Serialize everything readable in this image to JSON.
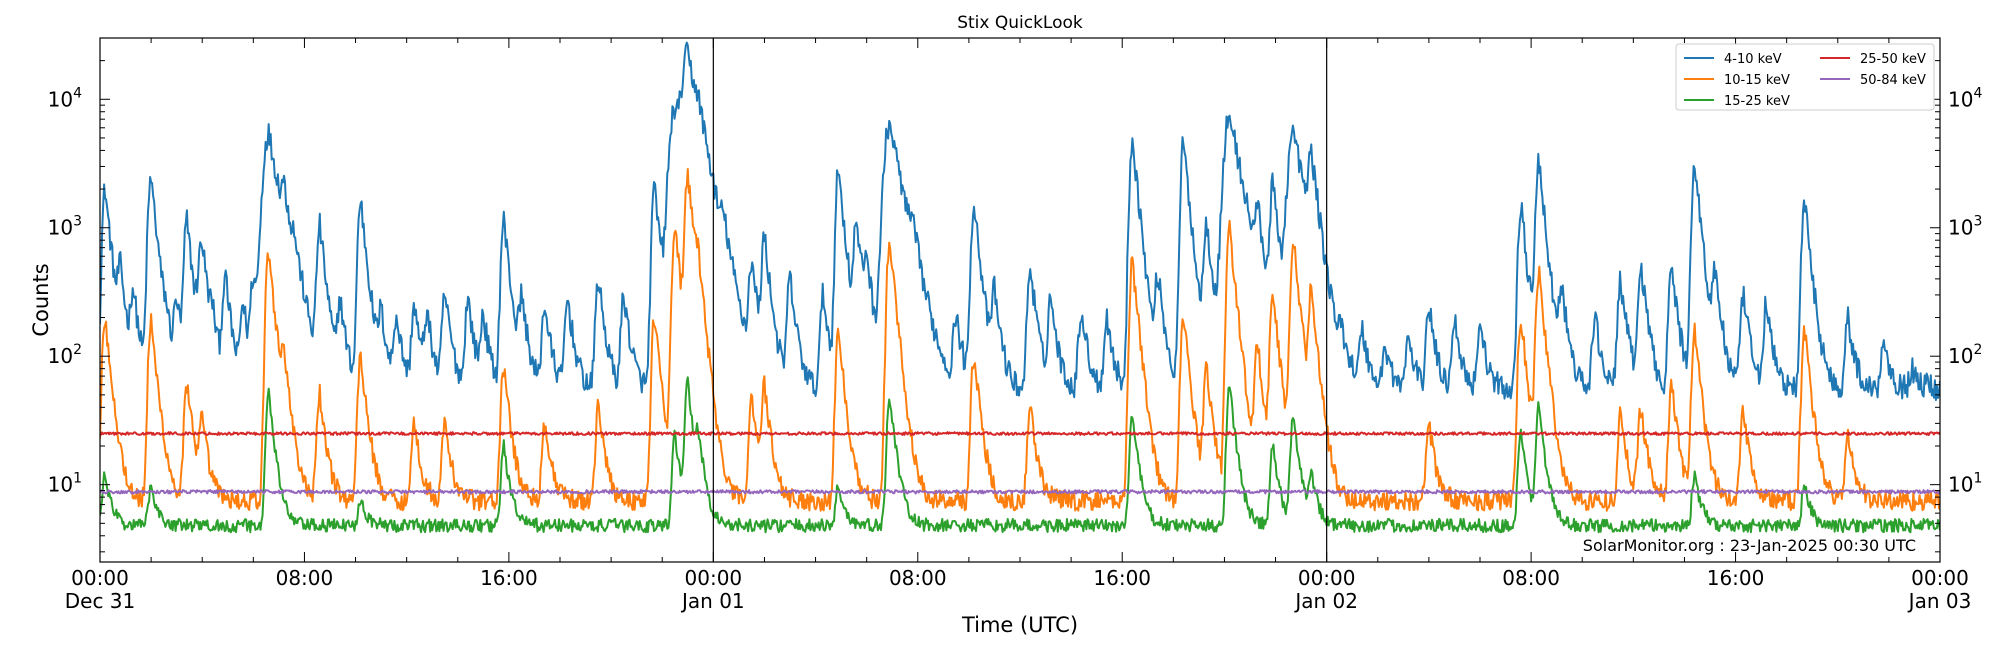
{
  "chart_data": {
    "type": "line",
    "title": "Stix QuickLook",
    "xlabel": "Time (UTC)",
    "ylabel": "Counts",
    "yscale": "log",
    "x_unit": "hours since 2024-12-31 00:00 UTC",
    "xlim": [
      0,
      72
    ],
    "ylim": [
      2.5,
      30000
    ],
    "x_ticks": [
      {
        "x": 0,
        "label": "00:00",
        "sublabel": "Dec 31"
      },
      {
        "x": 8,
        "label": "08:00",
        "sublabel": ""
      },
      {
        "x": 16,
        "label": "16:00",
        "sublabel": ""
      },
      {
        "x": 24,
        "label": "00:00",
        "sublabel": "Jan 01"
      },
      {
        "x": 32,
        "label": "08:00",
        "sublabel": ""
      },
      {
        "x": 40,
        "label": "16:00",
        "sublabel": ""
      },
      {
        "x": 48,
        "label": "00:00",
        "sublabel": "Jan 02"
      },
      {
        "x": 56,
        "label": "08:00",
        "sublabel": ""
      },
      {
        "x": 64,
        "label": "16:00",
        "sublabel": ""
      },
      {
        "x": 72,
        "label": "00:00",
        "sublabel": "Jan 03"
      }
    ],
    "y_ticks": [
      {
        "value": 10,
        "base": "10",
        "exp": "1"
      },
      {
        "value": 100,
        "base": "10",
        "exp": "2"
      },
      {
        "value": 1000,
        "base": "10",
        "exp": "3"
      },
      {
        "value": 10000,
        "base": "10",
        "exp": "4"
      }
    ],
    "day_boundaries": [
      24,
      48
    ],
    "legend_position": "top-right",
    "annotation": "SolarMonitor.org : 23-Jan-2025 00:30 UTC",
    "series": [
      {
        "name": "4-10 keV",
        "color": "#1f77b4",
        "baseline": 55,
        "noise": 0.22,
        "peaks": [
          {
            "t": 0.2,
            "v": 2000
          },
          {
            "t": 0.8,
            "v": 400
          },
          {
            "t": 1.3,
            "v": 300
          },
          {
            "t": 1.9,
            "v": 250
          },
          {
            "t": 2.0,
            "v": 2300
          },
          {
            "t": 2.6,
            "v": 120
          },
          {
            "t": 3.0,
            "v": 250
          },
          {
            "t": 3.4,
            "v": 1100
          },
          {
            "t": 3.9,
            "v": 250
          },
          {
            "t": 4.0,
            "v": 600
          },
          {
            "t": 4.4,
            "v": 150
          },
          {
            "t": 4.9,
            "v": 400
          },
          {
            "t": 5.6,
            "v": 250
          },
          {
            "t": 6.0,
            "v": 380
          },
          {
            "t": 6.5,
            "v": 400
          },
          {
            "t": 6.6,
            "v": 5200
          },
          {
            "t": 7.2,
            "v": 1100
          },
          {
            "t": 7.6,
            "v": 300
          },
          {
            "t": 8.6,
            "v": 1000
          },
          {
            "t": 9.4,
            "v": 250
          },
          {
            "t": 10.2,
            "v": 1650
          },
          {
            "t": 11.0,
            "v": 200
          },
          {
            "t": 11.6,
            "v": 200
          },
          {
            "t": 12.3,
            "v": 250
          },
          {
            "t": 12.8,
            "v": 200
          },
          {
            "t": 13.5,
            "v": 300
          },
          {
            "t": 14.4,
            "v": 280
          },
          {
            "t": 15.0,
            "v": 200
          },
          {
            "t": 15.8,
            "v": 1150
          },
          {
            "t": 16.5,
            "v": 260
          },
          {
            "t": 17.4,
            "v": 250
          },
          {
            "t": 18.3,
            "v": 280
          },
          {
            "t": 19.5,
            "v": 400
          },
          {
            "t": 20.5,
            "v": 300
          },
          {
            "t": 21.7,
            "v": 2000
          },
          {
            "t": 22.5,
            "v": 8500
          },
          {
            "t": 23.0,
            "v": 20000
          },
          {
            "t": 23.4,
            "v": 2500
          },
          {
            "t": 24.4,
            "v": 500
          },
          {
            "t": 25.5,
            "v": 500
          },
          {
            "t": 26.0,
            "v": 800
          },
          {
            "t": 27.0,
            "v": 400
          },
          {
            "t": 28.3,
            "v": 300
          },
          {
            "t": 28.9,
            "v": 2800
          },
          {
            "t": 29.6,
            "v": 1000
          },
          {
            "t": 30.0,
            "v": 500
          },
          {
            "t": 30.9,
            "v": 6500
          },
          {
            "t": 31.8,
            "v": 400
          },
          {
            "t": 33.5,
            "v": 200
          },
          {
            "t": 34.2,
            "v": 1600
          },
          {
            "t": 35.0,
            "v": 300
          },
          {
            "t": 36.4,
            "v": 500
          },
          {
            "t": 37.2,
            "v": 280
          },
          {
            "t": 38.4,
            "v": 230
          },
          {
            "t": 39.4,
            "v": 200
          },
          {
            "t": 40.4,
            "v": 5000
          },
          {
            "t": 41.4,
            "v": 400
          },
          {
            "t": 42.4,
            "v": 4500
          },
          {
            "t": 43.3,
            "v": 1100
          },
          {
            "t": 44.2,
            "v": 7500
          },
          {
            "t": 45.3,
            "v": 1000
          },
          {
            "t": 45.9,
            "v": 2000
          },
          {
            "t": 46.7,
            "v": 5500
          },
          {
            "t": 47.4,
            "v": 3000
          },
          {
            "t": 48.6,
            "v": 100
          },
          {
            "t": 49.4,
            "v": 150
          },
          {
            "t": 50.3,
            "v": 120
          },
          {
            "t": 51.2,
            "v": 140
          },
          {
            "t": 52.0,
            "v": 250
          },
          {
            "t": 53.0,
            "v": 200
          },
          {
            "t": 54.0,
            "v": 180
          },
          {
            "t": 55.6,
            "v": 1500
          },
          {
            "t": 56.3,
            "v": 3200
          },
          {
            "t": 57.2,
            "v": 300
          },
          {
            "t": 58.5,
            "v": 200
          },
          {
            "t": 59.5,
            "v": 400
          },
          {
            "t": 60.3,
            "v": 500
          },
          {
            "t": 61.5,
            "v": 500
          },
          {
            "t": 62.4,
            "v": 3200
          },
          {
            "t": 63.2,
            "v": 400
          },
          {
            "t": 64.3,
            "v": 300
          },
          {
            "t": 65.2,
            "v": 250
          },
          {
            "t": 66.7,
            "v": 1600
          },
          {
            "t": 68.4,
            "v": 200
          },
          {
            "t": 69.8,
            "v": 140
          },
          {
            "t": 70.9,
            "v": 80
          },
          {
            "t": 71.5,
            "v": 60
          }
        ]
      },
      {
        "name": "10-15 keV",
        "color": "#ff7f0e",
        "baseline": 7.5,
        "noise": 0.18,
        "peaks": [
          {
            "t": 0.2,
            "v": 200
          },
          {
            "t": 2.0,
            "v": 180
          },
          {
            "t": 3.4,
            "v": 60
          },
          {
            "t": 4.0,
            "v": 30
          },
          {
            "t": 6.6,
            "v": 650
          },
          {
            "t": 7.2,
            "v": 80
          },
          {
            "t": 8.6,
            "v": 50
          },
          {
            "t": 10.2,
            "v": 100
          },
          {
            "t": 12.3,
            "v": 30
          },
          {
            "t": 13.5,
            "v": 30
          },
          {
            "t": 15.8,
            "v": 80
          },
          {
            "t": 17.4,
            "v": 30
          },
          {
            "t": 19.5,
            "v": 40
          },
          {
            "t": 21.7,
            "v": 200
          },
          {
            "t": 22.5,
            "v": 1000
          },
          {
            "t": 23.0,
            "v": 2500
          },
          {
            "t": 23.4,
            "v": 300
          },
          {
            "t": 25.5,
            "v": 50
          },
          {
            "t": 26.0,
            "v": 55
          },
          {
            "t": 28.9,
            "v": 150
          },
          {
            "t": 30.9,
            "v": 800
          },
          {
            "t": 34.2,
            "v": 100
          },
          {
            "t": 36.4,
            "v": 40
          },
          {
            "t": 40.4,
            "v": 550
          },
          {
            "t": 42.4,
            "v": 200
          },
          {
            "t": 43.3,
            "v": 80
          },
          {
            "t": 44.2,
            "v": 1000
          },
          {
            "t": 45.3,
            "v": 120
          },
          {
            "t": 45.9,
            "v": 300
          },
          {
            "t": 46.7,
            "v": 800
          },
          {
            "t": 47.4,
            "v": 300
          },
          {
            "t": 52.0,
            "v": 30
          },
          {
            "t": 55.6,
            "v": 200
          },
          {
            "t": 56.3,
            "v": 450
          },
          {
            "t": 59.5,
            "v": 35
          },
          {
            "t": 60.3,
            "v": 40
          },
          {
            "t": 61.5,
            "v": 60
          },
          {
            "t": 62.4,
            "v": 150
          },
          {
            "t": 64.3,
            "v": 40
          },
          {
            "t": 66.7,
            "v": 160
          },
          {
            "t": 68.4,
            "v": 25
          }
        ]
      },
      {
        "name": "15-25 keV",
        "color": "#2ca02c",
        "baseline": 4.8,
        "noise": 0.12,
        "peaks": [
          {
            "t": 0.2,
            "v": 12
          },
          {
            "t": 2.0,
            "v": 10
          },
          {
            "t": 6.6,
            "v": 50
          },
          {
            "t": 10.2,
            "v": 8
          },
          {
            "t": 15.8,
            "v": 20
          },
          {
            "t": 22.5,
            "v": 25
          },
          {
            "t": 23.0,
            "v": 60
          },
          {
            "t": 23.4,
            "v": 20
          },
          {
            "t": 28.9,
            "v": 10
          },
          {
            "t": 30.9,
            "v": 50
          },
          {
            "t": 40.4,
            "v": 35
          },
          {
            "t": 44.2,
            "v": 60
          },
          {
            "t": 45.9,
            "v": 20
          },
          {
            "t": 46.7,
            "v": 35
          },
          {
            "t": 47.4,
            "v": 12
          },
          {
            "t": 55.6,
            "v": 25
          },
          {
            "t": 56.3,
            "v": 40
          },
          {
            "t": 62.4,
            "v": 12
          },
          {
            "t": 66.7,
            "v": 10
          }
        ]
      },
      {
        "name": "25-50 keV",
        "color": "#d62728",
        "baseline": 25,
        "noise": 0.025,
        "peaks": []
      },
      {
        "name": "50-84 keV",
        "color": "#9467bd",
        "baseline": 8.8,
        "noise": 0.03,
        "peaks": []
      }
    ]
  }
}
